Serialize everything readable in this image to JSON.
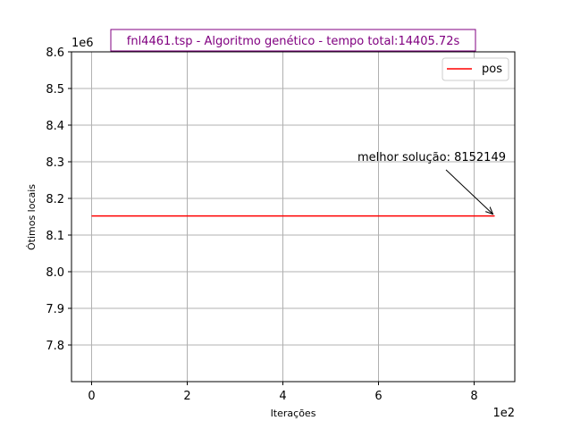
{
  "chart_data": {
    "type": "line",
    "title": "fnl4461.tsp - Algoritmo genético - tempo total:14405.72s",
    "xlabel": "Iterações",
    "ylabel": "Ótimos locais",
    "x_offset_label": "1e2",
    "y_offset_label": "1e6",
    "xlim": [
      -0.42,
      8.85
    ],
    "ylim": [
      7.7,
      8.6
    ],
    "x_ticks": [
      0,
      2,
      4,
      6,
      8
    ],
    "x_tick_labels": [
      "0",
      "2",
      "4",
      "6",
      "8"
    ],
    "y_ticks": [
      7.8,
      7.9,
      8.0,
      8.1,
      8.2,
      8.3,
      8.4,
      8.5,
      8.6
    ],
    "y_tick_labels": [
      "7.8",
      "7.9",
      "8.0",
      "8.1",
      "8.2",
      "8.3",
      "8.4",
      "8.5",
      "8.6"
    ],
    "grid": true,
    "legend_position": "top-right",
    "series": [
      {
        "name": "pos",
        "color": "#ff0000",
        "x": [
          0,
          8.43
        ],
        "y": [
          8.152149,
          8.152149
        ]
      }
    ],
    "annotation": {
      "text": "melhor solução: 8152149",
      "target": [
        8.43,
        8.152149
      ]
    },
    "colors": {
      "title": "#800080",
      "title_border": "#800080",
      "grid": "#b0b0b0",
      "axis": "#000000"
    }
  }
}
